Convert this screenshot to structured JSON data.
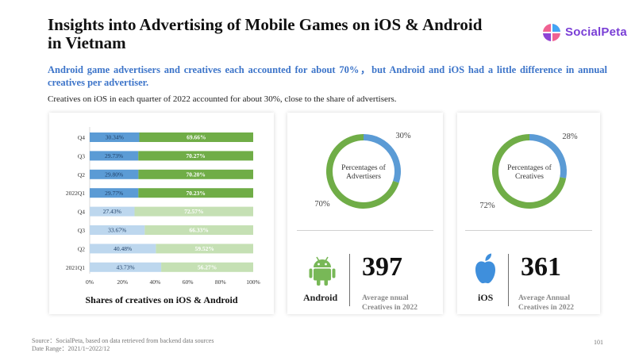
{
  "header": {
    "title": "Insights into Advertising of Mobile Games on iOS & Android in Vietnam",
    "subtitle": "Android game advertisers and creatives each accounted for about 70%，but Android and iOS had a little difference in annual creatives per advertiser.",
    "note": "Creatives on iOS in each quarter of 2022 accounted for about 30%, close to the share of advertisers."
  },
  "logo": {
    "text": "SocialPeta"
  },
  "colors": {
    "ios_2022": "#5b9bd5",
    "android_2022": "#70ad47",
    "ios_2021": "#bdd7ee",
    "android_2021": "#c5e0b4",
    "donut_blue": "#5b9bd5",
    "donut_green": "#70ad47"
  },
  "chart_data": [
    {
      "type": "bar",
      "orientation": "horizontal",
      "stacked": true,
      "title": "Shares of creatives on iOS & Android",
      "categories": [
        "Q4",
        "Q3",
        "Q2",
        "2022Q1",
        "Q4",
        "Q3",
        "Q2",
        "2021Q1"
      ],
      "series": [
        {
          "values": [
            30.34,
            29.73,
            29.8,
            29.77,
            27.43,
            33.67,
            40.48,
            43.73
          ],
          "labels": [
            "30.34%",
            "29.73%",
            "29.80%",
            "29.77%",
            "27.43%",
            "33.67%",
            "40.48%",
            "43.73%"
          ]
        },
        {
          "values": [
            69.66,
            70.27,
            70.2,
            70.23,
            72.57,
            66.33,
            59.52,
            56.27
          ],
          "labels": [
            "69.66%",
            "70.27%",
            "70.20%",
            "70.23%",
            "72.57%",
            "66.33%",
            "59.52%",
            "56.27%"
          ]
        }
      ],
      "xlim": [
        0,
        100
      ],
      "x_ticks": [
        "0%",
        "20%",
        "40%",
        "60%",
        "80%",
        "100%"
      ],
      "grid": false
    },
    {
      "type": "pie",
      "donut": true,
      "center_label": [
        "Percentages of",
        "Advertisers"
      ],
      "slices": [
        {
          "value": 30,
          "label": "30%"
        },
        {
          "value": 70,
          "label": "70%"
        }
      ]
    },
    {
      "type": "pie",
      "donut": true,
      "center_label": [
        "Percentages of",
        "Creatives"
      ],
      "slices": [
        {
          "value": 28,
          "label": "28%"
        },
        {
          "value": 72,
          "label": "72%"
        }
      ]
    }
  ],
  "android_stat": {
    "platform": "Android",
    "icon": "android-robot-icon",
    "value": "397",
    "label_line1": "Average nnual",
    "label_line2": "Creatives in 2022"
  },
  "ios_stat": {
    "platform": "iOS",
    "icon": "apple-logo-icon",
    "value": "361",
    "label_line1": "Average Annual",
    "label_line2": "Creatives in 2022"
  },
  "footer": {
    "source": "Source：SocialPeta, based on data retrieved from backend data sources",
    "date_range": "Date Range：2021/1~2022/12",
    "page_number": "101"
  }
}
